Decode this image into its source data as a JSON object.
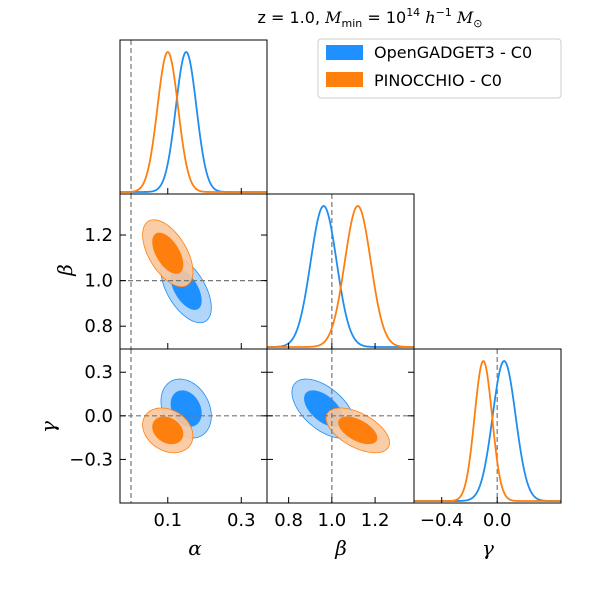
{
  "chart_data": {
    "type": "corner",
    "title": "z = 1.0, M_min = 10^14 h^-1 M_⊙",
    "title_parts": {
      "lead": "z = 1.0, ",
      "M": "M",
      "sub": "min",
      "eq": " = 10",
      "exp": "14",
      "h": " h",
      "hexp": "−1",
      "Msun": " M",
      "sun": "⊙"
    },
    "parameters": [
      {
        "name": "alpha",
        "label": "α",
        "range": [
          -0.03,
          0.37
        ],
        "truth": 0.0,
        "ticks": [
          "0.1",
          "0.3"
        ],
        "tick_values": [
          0.1,
          0.3
        ]
      },
      {
        "name": "beta",
        "label": "β",
        "range": [
          0.7,
          1.38
        ],
        "truth": 1.0,
        "ticks": [
          "0.8",
          "1.0",
          "1.2"
        ],
        "tick_values": [
          0.8,
          1.0,
          1.2
        ]
      },
      {
        "name": "gamma",
        "label": "γ",
        "range": [
          -0.6,
          0.46
        ],
        "truth": 0.0,
        "ticks": [
          "0.3",
          "0.0",
          "−0.3"
        ],
        "tick_values": [
          0.3,
          0.0,
          -0.3
        ],
        "xticks": [
          "−0.4",
          "0.0"
        ],
        "xtick_values": [
          -0.4,
          0.0
        ]
      }
    ],
    "series": [
      {
        "name": "OpenGADGET3 - C0",
        "color": "#1f8ef0",
        "fill_inner": "#1e90ff",
        "fill_outer": "#a8d2f8",
        "mean": {
          "alpha": 0.15,
          "beta": 0.962,
          "gamma": 0.05
        },
        "sigma": {
          "alpha": 0.028,
          "beta": 0.06,
          "gamma": 0.083
        },
        "corr": {
          "alpha_beta": -0.55,
          "alpha_gamma": -0.25,
          "beta_gamma": -0.55
        }
      },
      {
        "name": "PINOCCHIO - C0",
        "color": "#ff7f0e",
        "fill_inner": "#ff7f0e",
        "fill_outer": "#fbc89d",
        "mean": {
          "alpha": 0.1,
          "beta": 1.12,
          "gamma": -0.1
        },
        "sigma": {
          "alpha": 0.028,
          "beta": 0.06,
          "gamma": 0.063
        },
        "corr": {
          "alpha_beta": -0.55,
          "alpha_gamma": -0.25,
          "beta_gamma": -0.55
        }
      }
    ],
    "legend_position": "top-right",
    "truth_line_style": "dashed-gray"
  }
}
